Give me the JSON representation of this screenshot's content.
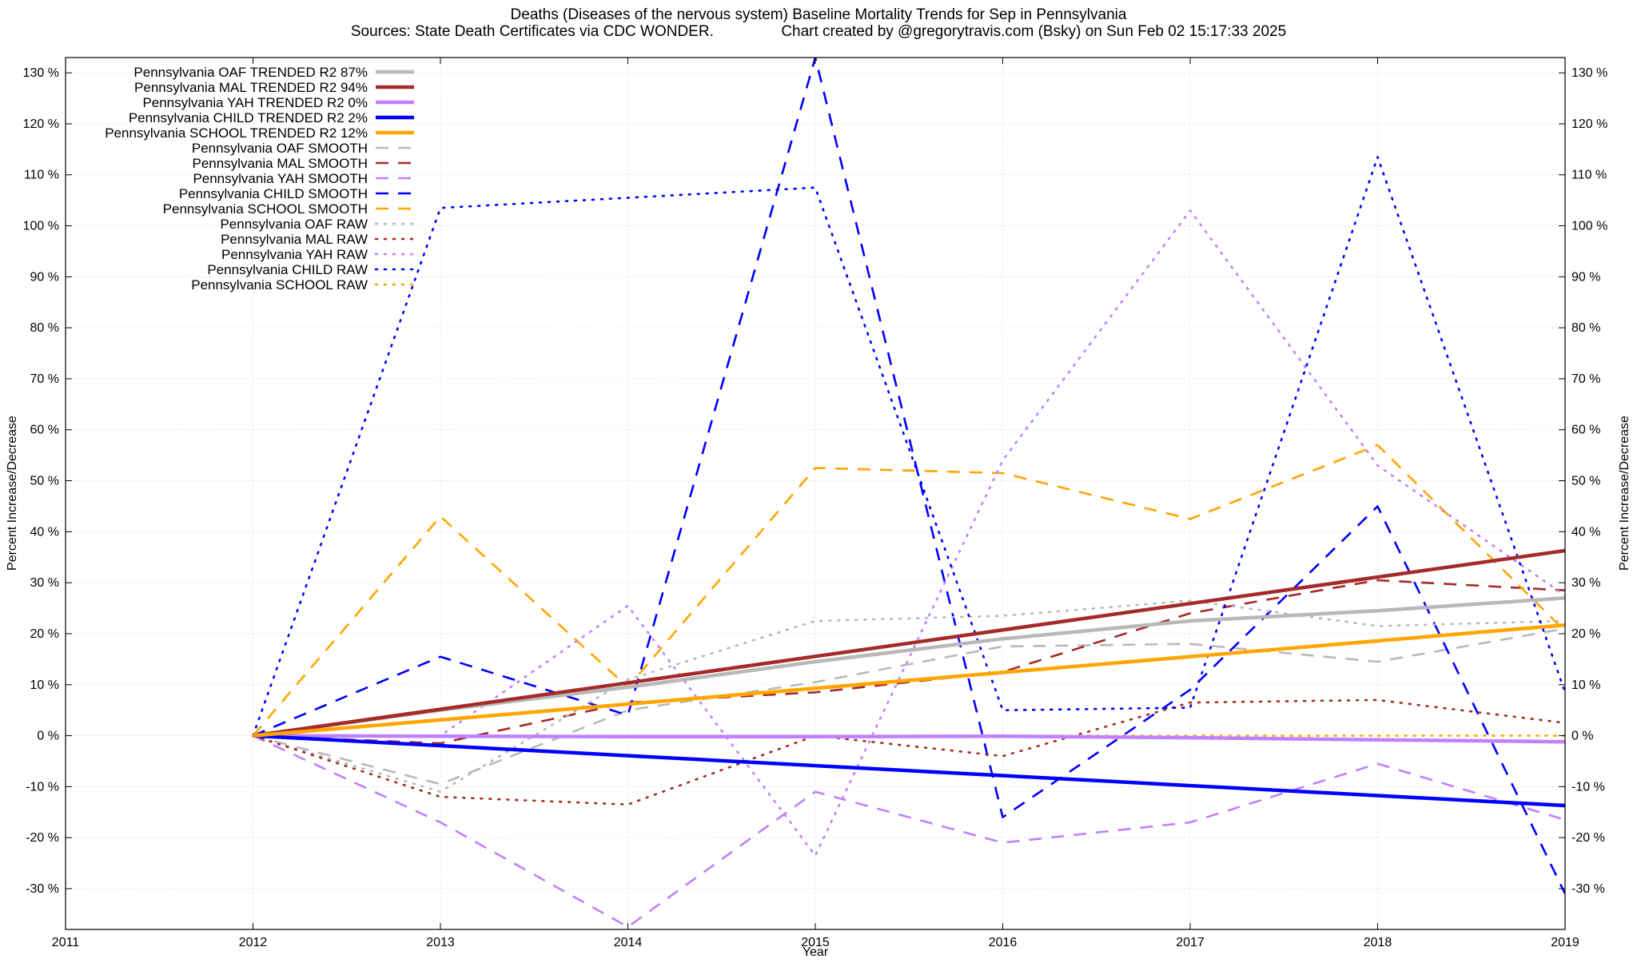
{
  "chart_data": {
    "type": "line",
    "title": "Deaths (Diseases of the nervous system)  Baseline Mortality Trends for Sep in Pennsylvania",
    "subtitle": "Sources: State Death Certificates via CDC WONDER.                Chart created by @gregorytravis.com (Bsky) on Sun Feb 02 15:17:33 2025",
    "xlabel": "Year",
    "ylabel": "Percent Increase/Decrease",
    "ylabel_right": "Percent Increase/Decrease",
    "xlim": [
      2011,
      2019
    ],
    "ylim": [
      -38,
      133
    ],
    "grid": true,
    "legend_position": "top-left",
    "x_ticks": [
      "2011",
      "2012",
      "2013",
      "2014",
      "2015",
      "2016",
      "2017",
      "2018",
      "2019"
    ],
    "x_tick_values": [
      2011,
      2012,
      2013,
      2014,
      2015,
      2016,
      2017,
      2018,
      2019
    ],
    "y_tick_values": [
      -30,
      -20,
      -10,
      0,
      10,
      20,
      30,
      40,
      50,
      60,
      70,
      80,
      90,
      100,
      110,
      120,
      130
    ],
    "y_ticks": [
      "-30 %",
      "-20 %",
      "-10 %",
      "0 %",
      "10 %",
      "20 %",
      "30 %",
      "40 %",
      "50 %",
      "60 %",
      "70 %",
      "80 %",
      "90 %",
      "100 %",
      "110 %",
      "120 %",
      "130 %"
    ],
    "series": [
      {
        "name": "Pennsylvania OAF TRENDED R2  87%",
        "style": "trend",
        "color": "#b8b8b8",
        "x": [
          2012,
          2013,
          2014,
          2015,
          2016,
          2017,
          2018,
          2019
        ],
        "y": [
          0,
          5,
          9.5,
          14.5,
          19,
          22.5,
          24.5,
          27
        ]
      },
      {
        "name": "Pennsylvania MAL TRENDED R2  94%",
        "style": "trend",
        "color": "#a52a2a",
        "x": [
          2012,
          2019
        ],
        "y": [
          0,
          36.3
        ]
      },
      {
        "name": "Pennsylvania YAH TRENDED R2   0%",
        "style": "trend",
        "color": "#c080ff",
        "x": [
          2012,
          2013,
          2014,
          2015,
          2016,
          2017,
          2018,
          2019
        ],
        "y": [
          0,
          -0.1,
          -0.2,
          -0.2,
          -0.1,
          -0.4,
          -0.8,
          -1.2
        ]
      },
      {
        "name": "Pennsylvania CHILD TRENDED R2   2%",
        "style": "trend",
        "color": "#0000ff",
        "x": [
          2012,
          2019
        ],
        "y": [
          0,
          -13.7
        ]
      },
      {
        "name": "Pennsylvania SCHOOL TRENDED R2  12%",
        "style": "trend",
        "color": "#ffa500",
        "x": [
          2012,
          2019
        ],
        "y": [
          0,
          21.7
        ]
      },
      {
        "name": "Pennsylvania OAF SMOOTH",
        "style": "smooth",
        "color": "#b8b8b8",
        "x": [
          2012,
          2013,
          2014,
          2015,
          2016,
          2017,
          2018,
          2019
        ],
        "y": [
          0,
          -9.5,
          5,
          10.5,
          17.5,
          18,
          14.5,
          21
        ]
      },
      {
        "name": "Pennsylvania MAL SMOOTH",
        "style": "smooth",
        "color": "#a52a2a",
        "x": [
          2012,
          2013,
          2014,
          2015,
          2016,
          2017,
          2018,
          2019
        ],
        "y": [
          0,
          -1.5,
          6.5,
          8.5,
          12.5,
          24,
          30.5,
          28.5
        ]
      },
      {
        "name": "Pennsylvania YAH SMOOTH",
        "style": "smooth",
        "color": "#c080ff",
        "x": [
          2012,
          2013,
          2014,
          2015,
          2016,
          2017,
          2018,
          2019
        ],
        "y": [
          0,
          -17,
          -37.5,
          -11,
          -21,
          -17,
          -5.5,
          -16.5
        ]
      },
      {
        "name": "Pennsylvania CHILD SMOOTH",
        "style": "smooth",
        "color": "#0000ff",
        "x": [
          2012,
          2013,
          2014,
          2015,
          2016,
          2017,
          2018,
          2019
        ],
        "y": [
          0,
          15.5,
          4,
          133,
          -16,
          9,
          45,
          -31
        ]
      },
      {
        "name": "Pennsylvania SCHOOL SMOOTH",
        "style": "smooth",
        "color": "#ffa500",
        "x": [
          2012,
          2013,
          2014,
          2015,
          2016,
          2017,
          2018,
          2019
        ],
        "y": [
          0,
          43,
          9.5,
          52.5,
          51.5,
          42.5,
          57,
          20.5
        ]
      },
      {
        "name": "Pennsylvania OAF RAW",
        "style": "raw",
        "color": "#b8b8b8",
        "x": [
          2012,
          2013,
          2014,
          2015,
          2016,
          2017,
          2018,
          2019
        ],
        "y": [
          0,
          -11,
          11,
          22.5,
          23.5,
          26.5,
          21.5,
          22.5
        ]
      },
      {
        "name": "Pennsylvania MAL RAW",
        "style": "raw",
        "color": "#a52a2a",
        "x": [
          2012,
          2013,
          2014,
          2015,
          2016,
          2017,
          2018,
          2019
        ],
        "y": [
          0,
          -12,
          -13.5,
          0,
          -4,
          6.5,
          7,
          2.5
        ]
      },
      {
        "name": "Pennsylvania YAH RAW",
        "style": "raw",
        "color": "#c080ff",
        "x": [
          2012,
          2013,
          2014,
          2015,
          2016,
          2017,
          2018,
          2019
        ],
        "y": [
          0,
          0,
          25.5,
          -23.5,
          54,
          103,
          53,
          27.5
        ]
      },
      {
        "name": "Pennsylvania CHILD RAW",
        "style": "raw",
        "color": "#0000ff",
        "x": [
          2012,
          2013,
          2014,
          2015,
          2016,
          2017,
          2018,
          2019
        ],
        "y": [
          0,
          103.5,
          105.5,
          107.5,
          5,
          5.5,
          113.5,
          8.5
        ]
      },
      {
        "name": "Pennsylvania SCHOOL RAW",
        "style": "raw",
        "color": "#ffa500",
        "x": [
          2012,
          2013,
          2014,
          2015,
          2016,
          2017,
          2018,
          2019
        ],
        "y": [
          0,
          0,
          0,
          0,
          0,
          0,
          0,
          0
        ]
      }
    ]
  }
}
